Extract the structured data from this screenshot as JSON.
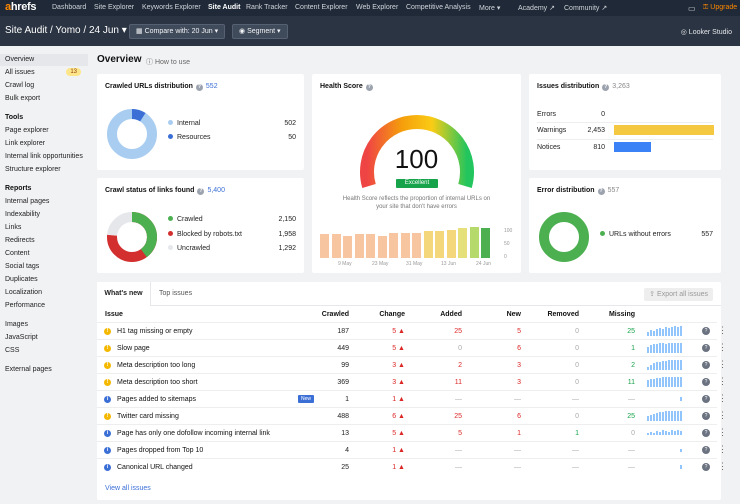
{
  "topbar": {
    "logo_a": "a",
    "logo_rest": "hrefs",
    "nav": [
      "Dashboard",
      "Site Explorer",
      "Keywords Explorer",
      "Site Audit",
      "Rank Tracker",
      "Content Explorer",
      "Web Explorer",
      "Competitive Analysis",
      "More ▾",
      "Academy ↗",
      "Community ↗"
    ],
    "upgrade": "Upgrade"
  },
  "subbar": {
    "crumb": "Site Audit / Yomo / 24 Jun ▾",
    "compare": "Compare with: 20 Jun ▾",
    "segment": "Segment ▾",
    "looker": "Looker Studio"
  },
  "sidebar": {
    "overview": "Overview",
    "all_issues": "All issues",
    "all_issues_count": "13",
    "crawl_log": "Crawl log",
    "bulk_export": "Bulk export",
    "tools_h": "Tools",
    "tools": [
      "Page explorer",
      "Link explorer",
      "Internal link opportunities",
      "Structure explorer"
    ],
    "reports_h": "Reports",
    "reports": [
      "Internal pages",
      "Indexability",
      "Links",
      "Redirects",
      "Content",
      "Social tags",
      "Duplicates",
      "Localization",
      "Performance"
    ],
    "more": [
      "Images",
      "JavaScript",
      "CSS"
    ],
    "external": "External pages"
  },
  "page": {
    "title": "Overview",
    "how_to": "How to use"
  },
  "crawled": {
    "title": "Crawled URLs distribution",
    "count": "552",
    "items": [
      {
        "label": "Internal",
        "value": "502",
        "color": "#a8cdf0"
      },
      {
        "label": "Resources",
        "value": "50",
        "color": "#3b6fd6"
      }
    ]
  },
  "health": {
    "title": "Health Score",
    "score": "100",
    "badge": "Excellent",
    "desc1": "Health Score reflects the proportion of internal URLs on",
    "desc2": "your site that don't have errors",
    "ticks": [
      "100",
      "50",
      "0"
    ],
    "dates": [
      "9 May",
      "23 May",
      "31 May",
      "13 Jun",
      "24 Jun"
    ]
  },
  "issues_dist": {
    "title": "Issues distribution",
    "count": "3,263",
    "rows": [
      {
        "label": "Errors",
        "value": "0",
        "frac": 0,
        "color": "#dc2626"
      },
      {
        "label": "Warnings",
        "value": "2,453",
        "frac": 1,
        "color": "#f5c842"
      },
      {
        "label": "Notices",
        "value": "810",
        "frac": 0.33,
        "color": "#3b82f6"
      }
    ]
  },
  "crawl_status": {
    "title": "Crawl status of links found",
    "count": "5,400",
    "items": [
      {
        "label": "Crawled",
        "value": "2,150",
        "color": "#4caf50"
      },
      {
        "label": "Blocked by robots.txt",
        "value": "1,958",
        "color": "#d32f2f"
      },
      {
        "label": "Uncrawled",
        "value": "1,292",
        "color": "#e5e7eb"
      }
    ]
  },
  "error_dist": {
    "title": "Error distribution",
    "count": "557",
    "label": "URLs without errors",
    "value": "557",
    "color": "#4caf50"
  },
  "tabs": {
    "whats_new": "What's new",
    "top_issues": "Top issues",
    "export": "Export all issues"
  },
  "table": {
    "headers": [
      "Issue",
      "Crawled",
      "Change",
      "Added",
      "New",
      "Removed",
      "Missing"
    ],
    "rows": [
      {
        "icon": "!",
        "ic": "#f5b800",
        "issue": "H1 tag missing or empty",
        "crawled": "187",
        "change": "5 ▲",
        "added": "25",
        "new": "5",
        "removed": "0",
        "missing": "25",
        "badge": ""
      },
      {
        "icon": "!",
        "ic": "#f5b800",
        "issue": "Slow page",
        "crawled": "449",
        "change": "5 ▲",
        "added": "0",
        "new": "6",
        "removed": "0",
        "missing": "1",
        "badge": ""
      },
      {
        "icon": "!",
        "ic": "#f5b800",
        "issue": "Meta description too long",
        "crawled": "99",
        "change": "3 ▲",
        "added": "2",
        "new": "3",
        "removed": "0",
        "missing": "2",
        "badge": ""
      },
      {
        "icon": "!",
        "ic": "#f5b800",
        "issue": "Meta description too short",
        "crawled": "369",
        "change": "3 ▲",
        "added": "11",
        "new": "3",
        "removed": "0",
        "missing": "11",
        "badge": ""
      },
      {
        "icon": "i",
        "ic": "#3b6fd6",
        "issue": "Pages added to sitemaps",
        "crawled": "1",
        "change": "1 ▲",
        "added": "—",
        "new": "—",
        "removed": "—",
        "missing": "—",
        "badge": "New"
      },
      {
        "icon": "!",
        "ic": "#f5b800",
        "issue": "Twitter card missing",
        "crawled": "488",
        "change": "6 ▲",
        "added": "25",
        "new": "6",
        "removed": "0",
        "missing": "25",
        "badge": ""
      },
      {
        "icon": "i",
        "ic": "#3b6fd6",
        "issue": "Page has only one dofollow incoming internal link",
        "crawled": "13",
        "change": "5 ▲",
        "added": "5",
        "new": "1",
        "removed": "1",
        "missing": "0",
        "badge": ""
      },
      {
        "icon": "i",
        "ic": "#3b6fd6",
        "issue": "Pages dropped from Top 10",
        "crawled": "4",
        "change": "1 ▲",
        "added": "—",
        "new": "—",
        "removed": "—",
        "missing": "—",
        "badge": ""
      },
      {
        "icon": "i",
        "ic": "#3b6fd6",
        "issue": "Canonical URL changed",
        "crawled": "25",
        "change": "1 ▲",
        "added": "—",
        "new": "—",
        "removed": "—",
        "missing": "—",
        "badge": ""
      }
    ],
    "view_all": "View all issues"
  }
}
